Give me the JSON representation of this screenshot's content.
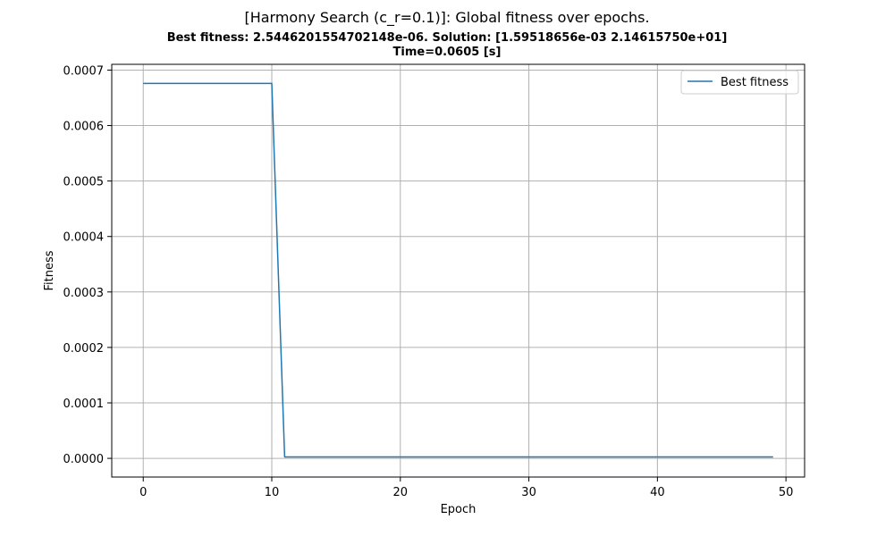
{
  "chart_data": {
    "type": "line",
    "title": "[Harmony Search (c_r=0.1)]: Global fitness over epochs.",
    "subtitle_line1": "Best fitness: 2.5446201554702148e-06. Solution: [1.59518656e-03 2.14615750e+01]",
    "subtitle_line2": "Time=0.0605 [s]",
    "xlabel": "Epoch",
    "ylabel": "Fitness",
    "xlim": [
      -2.45,
      51.45
    ],
    "ylim": [
      -3.37e-05,
      0.0007104
    ],
    "xticks": [
      0,
      10,
      20,
      30,
      40,
      50
    ],
    "xtick_labels": [
      "0",
      "10",
      "20",
      "30",
      "40",
      "50"
    ],
    "yticks": [
      0,
      0.0001,
      0.0002,
      0.0003,
      0.0004,
      0.0005,
      0.0006,
      0.0007
    ],
    "ytick_labels": [
      "0.0000",
      "0.0001",
      "0.0002",
      "0.0003",
      "0.0004",
      "0.0005",
      "0.0006",
      "0.0007"
    ],
    "grid": true,
    "legend_position": "top-right",
    "series": [
      {
        "name": "Best fitness",
        "color": "#1f77b4",
        "x": [
          0,
          10,
          11,
          49
        ],
        "y": [
          0.000676,
          0.000676,
          2.5446e-06,
          2.5446e-06
        ]
      }
    ]
  }
}
